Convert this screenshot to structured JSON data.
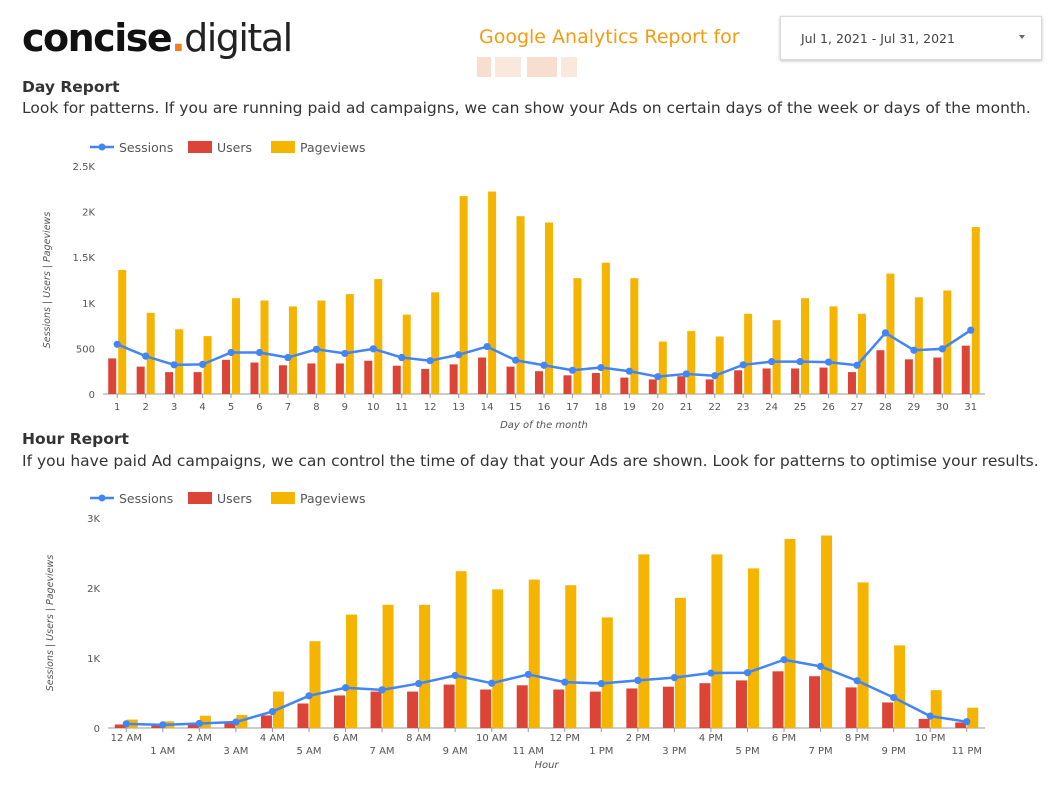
{
  "header": {
    "logo_bold": "concise",
    "logo_dot": ".",
    "logo_light": "digital",
    "report_title": "Google Analytics Report for",
    "date_range": "Jul 1, 2021 - Jul 31, 2021"
  },
  "sections": {
    "day": {
      "title": "Day Report",
      "description": "Look for patterns. If you are running paid ad campaigns, we can show your Ads on certain days of the week or days of the month."
    },
    "hour": {
      "title": "Hour Report",
      "description": "If you have paid Ad campaigns, we can control the time of day that your Ads are shown. Look for patterns to optimise your results."
    }
  },
  "colors": {
    "sessions": "#4285f4",
    "users": "#db4437",
    "pageviews": "#f4b400",
    "accent": "#f39c12"
  },
  "chart_data": [
    {
      "type": "bar",
      "xlabel": "Day of the month",
      "ylabel": "Sessions | Users | Pageviews",
      "ylim": [
        0,
        2500
      ],
      "yticks": [
        "0",
        "500",
        "1K",
        "1.5K",
        "2K",
        "2.5K"
      ],
      "ytick_values": [
        0,
        500,
        1000,
        1500,
        2000,
        2500
      ],
      "legend": "top-left",
      "grid": false,
      "categories": [
        "1",
        "2",
        "3",
        "4",
        "5",
        "6",
        "7",
        "8",
        "9",
        "10",
        "11",
        "12",
        "13",
        "14",
        "15",
        "16",
        "17",
        "18",
        "19",
        "20",
        "21",
        "22",
        "23",
        "24",
        "25",
        "26",
        "27",
        "28",
        "29",
        "30",
        "31"
      ],
      "series": [
        {
          "name": "Sessions",
          "kind": "line",
          "values": [
            545,
            415,
            320,
            325,
            455,
            455,
            400,
            490,
            445,
            495,
            400,
            365,
            430,
            520,
            370,
            315,
            260,
            290,
            250,
            190,
            220,
            200,
            320,
            355,
            355,
            350,
            315,
            670,
            480,
            495,
            700
          ]
        },
        {
          "name": "Users",
          "kind": "bar",
          "values": [
            390,
            300,
            240,
            240,
            375,
            345,
            315,
            335,
            335,
            365,
            310,
            275,
            325,
            400,
            300,
            250,
            205,
            230,
            180,
            160,
            195,
            160,
            260,
            280,
            280,
            290,
            240,
            480,
            380,
            400,
            530
          ]
        },
        {
          "name": "Pageviews",
          "kind": "bar",
          "values": [
            1360,
            890,
            710,
            635,
            1050,
            1025,
            960,
            1025,
            1095,
            1260,
            870,
            1115,
            2170,
            2220,
            1950,
            1880,
            1270,
            1440,
            1270,
            575,
            690,
            630,
            880,
            810,
            1050,
            960,
            880,
            1320,
            1060,
            1135,
            1830
          ]
        }
      ]
    },
    {
      "type": "bar",
      "xlabel": "Hour",
      "ylabel": "Sessions | Users | Pageviews",
      "ylim": [
        0,
        3000
      ],
      "yticks": [
        "0",
        "1K",
        "2K",
        "3K"
      ],
      "ytick_values": [
        0,
        1000,
        2000,
        3000
      ],
      "legend": "top-left",
      "grid": false,
      "categories": [
        "12 AM",
        "1 AM",
        "2 AM",
        "3 AM",
        "4 AM",
        "5 AM",
        "6 AM",
        "7 AM",
        "8 AM",
        "9 AM",
        "10 AM",
        "11 AM",
        "12 PM",
        "1 PM",
        "2 PM",
        "3 PM",
        "4 PM",
        "5 PM",
        "6 PM",
        "7 PM",
        "8 PM",
        "9 PM",
        "10 PM",
        "11 PM"
      ],
      "series": [
        {
          "name": "Sessions",
          "kind": "line",
          "values": [
            60,
            45,
            65,
            85,
            235,
            460,
            575,
            545,
            635,
            750,
            640,
            765,
            655,
            635,
            680,
            720,
            785,
            790,
            975,
            880,
            675,
            435,
            170,
            90
          ]
        },
        {
          "name": "Users",
          "kind": "bar",
          "values": [
            50,
            40,
            55,
            75,
            180,
            350,
            465,
            520,
            520,
            620,
            550,
            610,
            550,
            520,
            565,
            590,
            640,
            680,
            810,
            740,
            580,
            365,
            130,
            80
          ]
        },
        {
          "name": "Pageviews",
          "kind": "bar",
          "values": [
            120,
            95,
            175,
            185,
            520,
            1240,
            1620,
            1760,
            1760,
            2240,
            1980,
            2120,
            2040,
            1580,
            2480,
            1860,
            2480,
            2280,
            2700,
            2750,
            2080,
            1180,
            540,
            290
          ]
        }
      ]
    }
  ]
}
